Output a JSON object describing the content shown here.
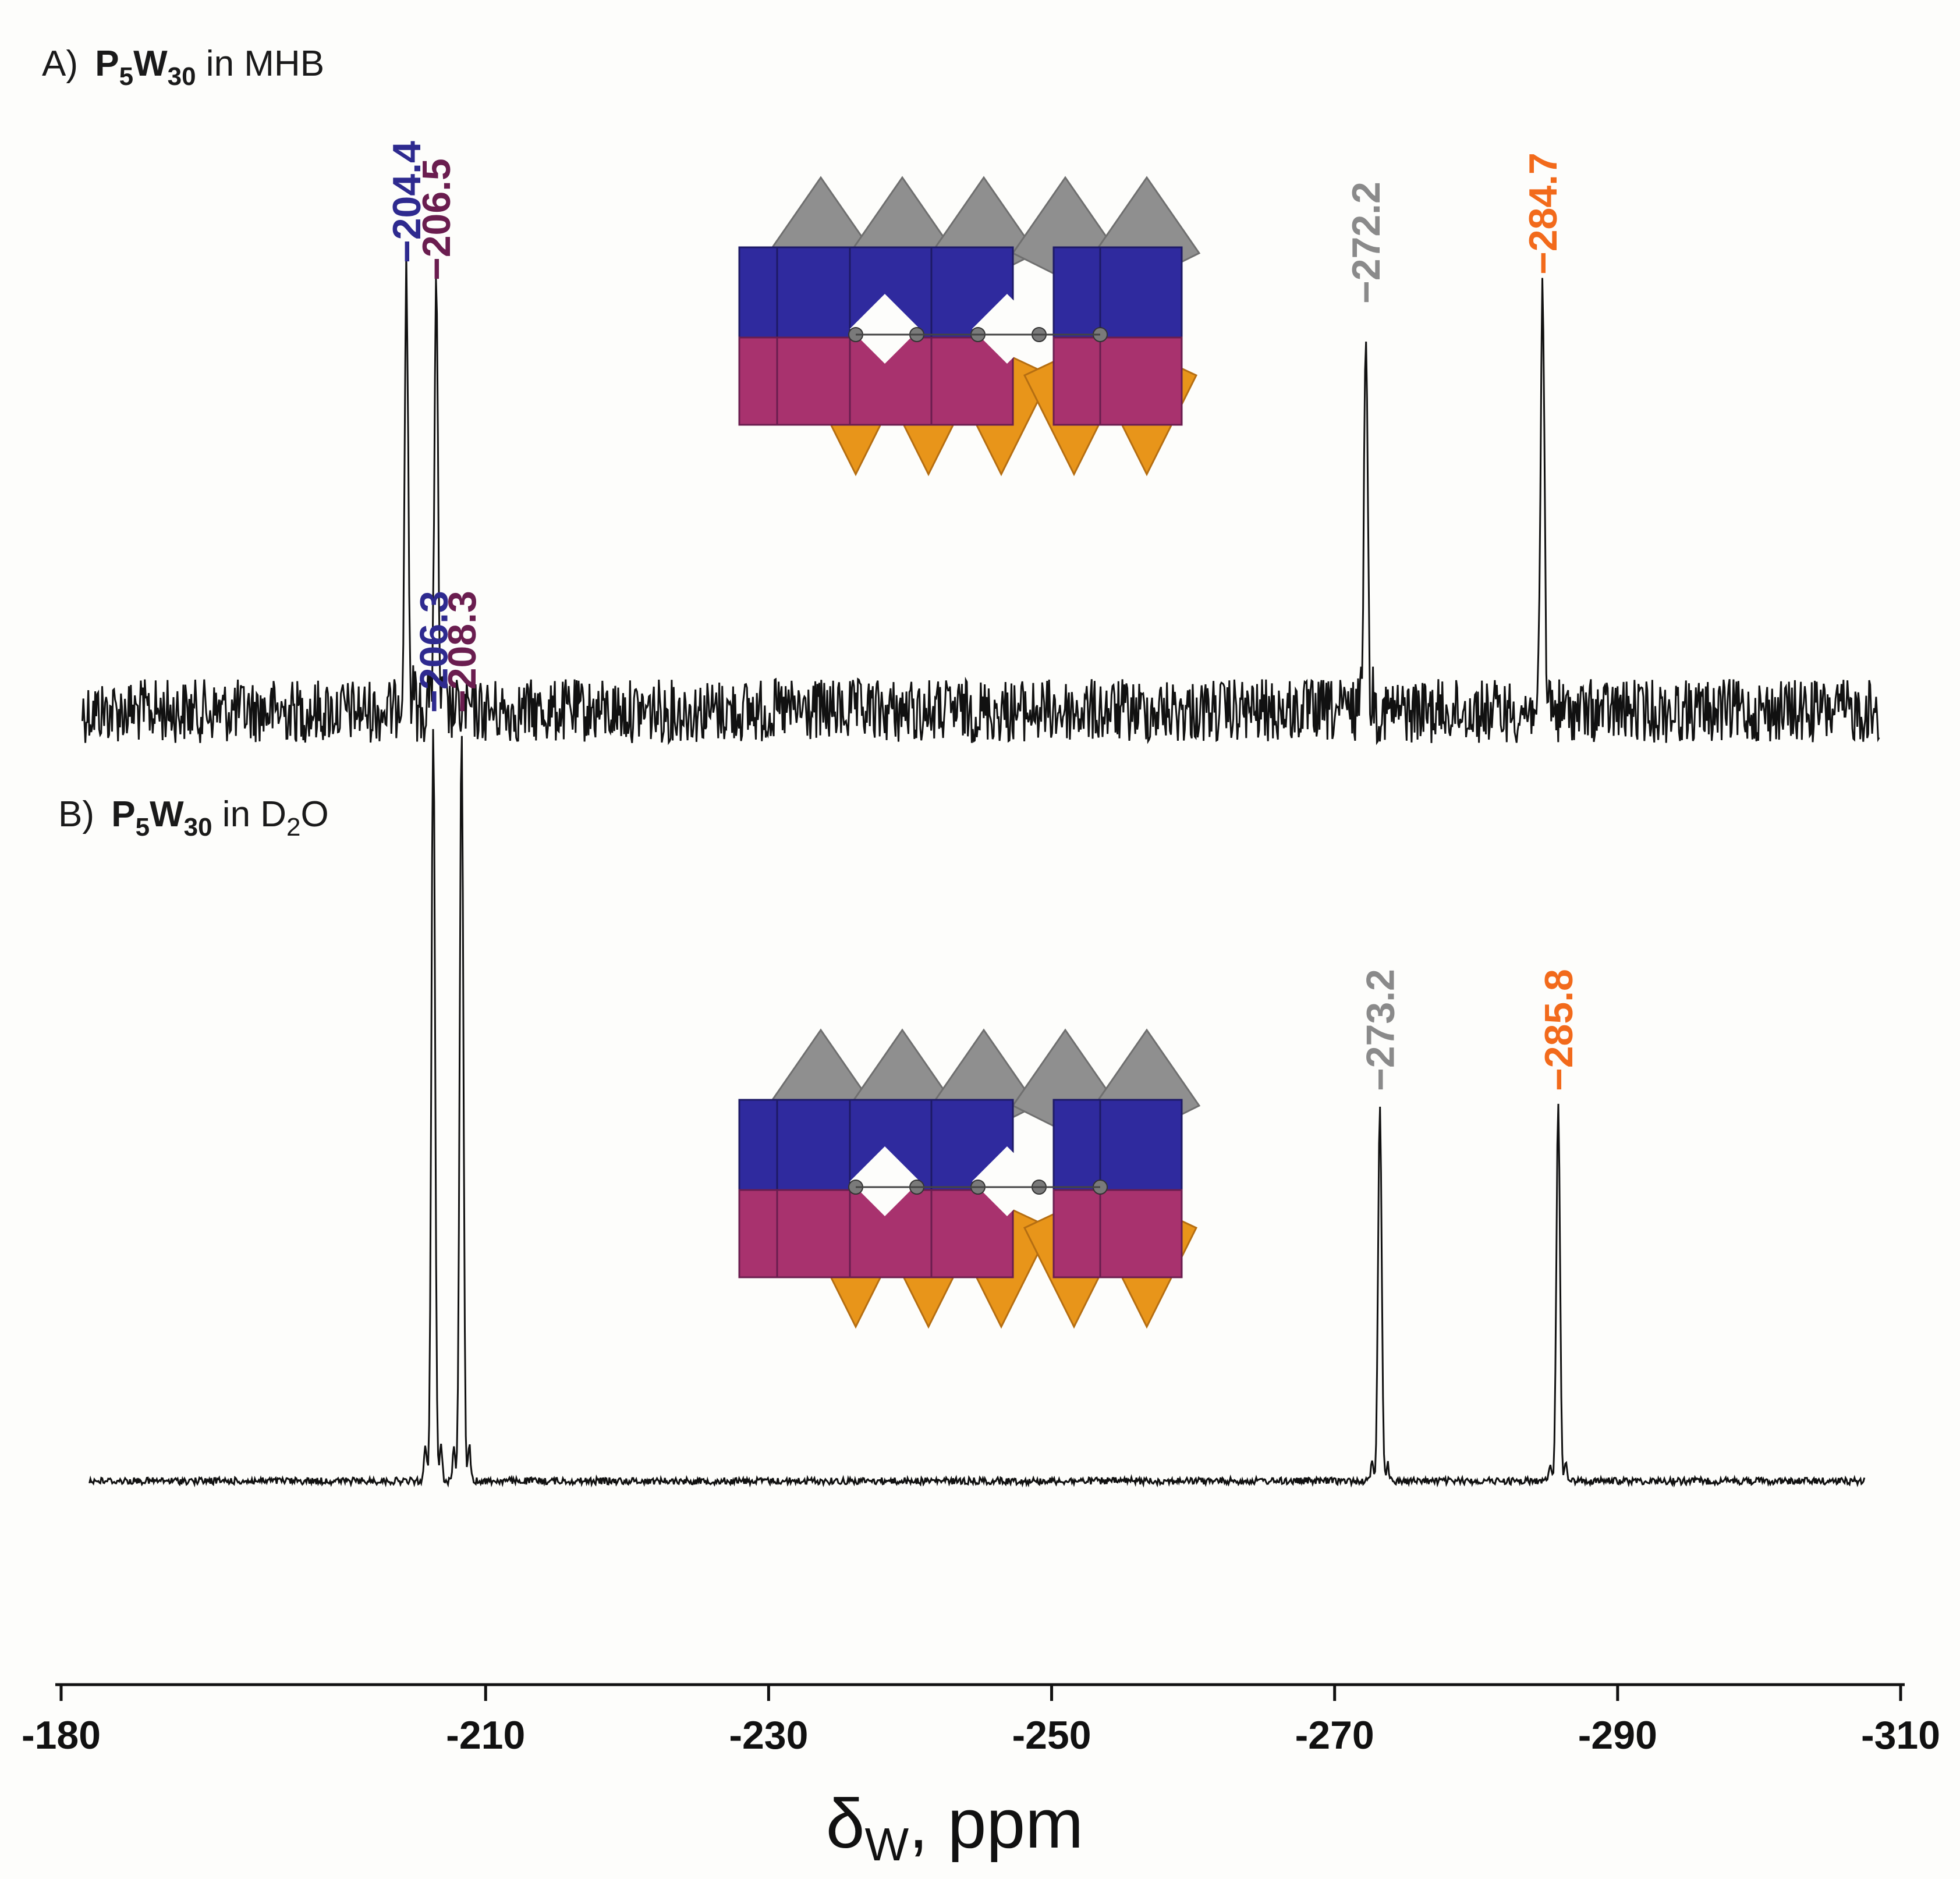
{
  "chart_data": {
    "type": "line",
    "xlabel": "δW, ppm",
    "xlim": [
      -180,
      -310
    ],
    "x_ticks": [
      "-180",
      "-210",
      "-230",
      "-250",
      "-270",
      "-290",
      "-310"
    ],
    "x_tick_values": [
      -180,
      -210,
      -230,
      -250,
      -270,
      -290,
      -310
    ],
    "panels": [
      {
        "id": "A",
        "label_prefix": "A)",
        "compound_main": "P",
        "compound_sub1": "5",
        "compound_w": "W",
        "compound_sub2": "30",
        "label_suffix": " in MHB",
        "noise": "high",
        "peaks": [
          {
            "label": "−204.4",
            "x": -204.4,
            "height": 0.75,
            "color": "#2e2a8f"
          },
          {
            "label": "−206.5",
            "x": -206.5,
            "height": 0.72,
            "color": "#6a1d4f"
          },
          {
            "label": "−272.2",
            "x": -272.2,
            "height": 0.68,
            "color": "#8a8a8a"
          },
          {
            "label": "−284.7",
            "x": -284.7,
            "height": 0.73,
            "color": "#f26a1b"
          }
        ]
      },
      {
        "id": "B",
        "label_prefix": "B)",
        "compound_main": "P",
        "compound_sub1": "5",
        "compound_w": "W",
        "compound_sub2": "30",
        "label_suffix_pre": " in D",
        "label_suffix_sub": "2",
        "label_suffix_post": "O",
        "noise": "low",
        "peaks": [
          {
            "label": "−206.3",
            "x": -206.3,
            "height": 1.0,
            "color": "#2e2a8f"
          },
          {
            "label": "−208.3",
            "x": -208.3,
            "height": 1.0,
            "color": "#6a1d4f"
          },
          {
            "label": "−273.2",
            "x": -273.2,
            "height": 0.5,
            "color": "#8a8a8a"
          },
          {
            "label": "−285.8",
            "x": -285.8,
            "height": 0.5,
            "color": "#f26a1b"
          }
        ]
      }
    ]
  },
  "structure_colors": {
    "top": "#8f8f8f",
    "blue": "#2f2a9e",
    "magenta": "#a8326e",
    "orange": "#e8951a"
  }
}
